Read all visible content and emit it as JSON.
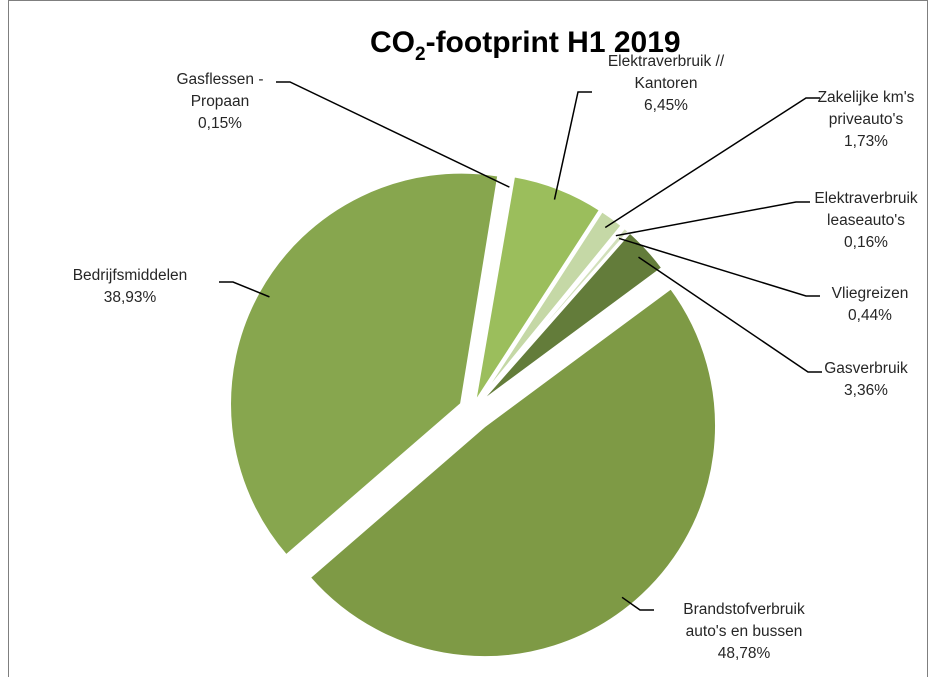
{
  "chart_data": {
    "type": "pie",
    "title_main": "CO",
    "title_sub": "2",
    "title_rest": "-footprint H1 2019",
    "slices": [
      {
        "lines": [
          "Brandstofverbruik",
          "auto's en bussen"
        ],
        "pct": "48,78%",
        "value": 48.78,
        "color": "#7e9a45",
        "explode": 20
      },
      {
        "lines": [
          "Bedrijfsmiddelen"
        ],
        "pct": "38,93%",
        "value": 38.93,
        "color": "#87a64e",
        "explode": 12
      },
      {
        "lines": [
          "Gasflessen -",
          "Propaan"
        ],
        "pct": "0,15%",
        "value": 0.15,
        "color": "#a6c16b",
        "explode": 6
      },
      {
        "lines": [
          "Elektraverbruik //",
          "Kantoren"
        ],
        "pct": "6,45%",
        "value": 6.45,
        "color": "#9bbe5c",
        "explode": 6
      },
      {
        "lines": [
          "Zakelijke km's",
          "priveauto's"
        ],
        "pct": "1,73%",
        "value": 1.73,
        "color": "#c5d8a6",
        "explode": 6
      },
      {
        "lines": [
          "Elektraverbruik",
          "leaseauto's"
        ],
        "pct": "0,16%",
        "value": 0.16,
        "color": "#b4cc8a",
        "explode": 6
      },
      {
        "lines": [
          "Vliegreizen"
        ],
        "pct": "0,44%",
        "value": 0.44,
        "color": "#d2e0bb",
        "explode": 6
      },
      {
        "lines": [
          "Gasverbruik"
        ],
        "pct": "3,36%",
        "value": 3.36,
        "color": "#637c3a",
        "explode": 6
      }
    ]
  }
}
